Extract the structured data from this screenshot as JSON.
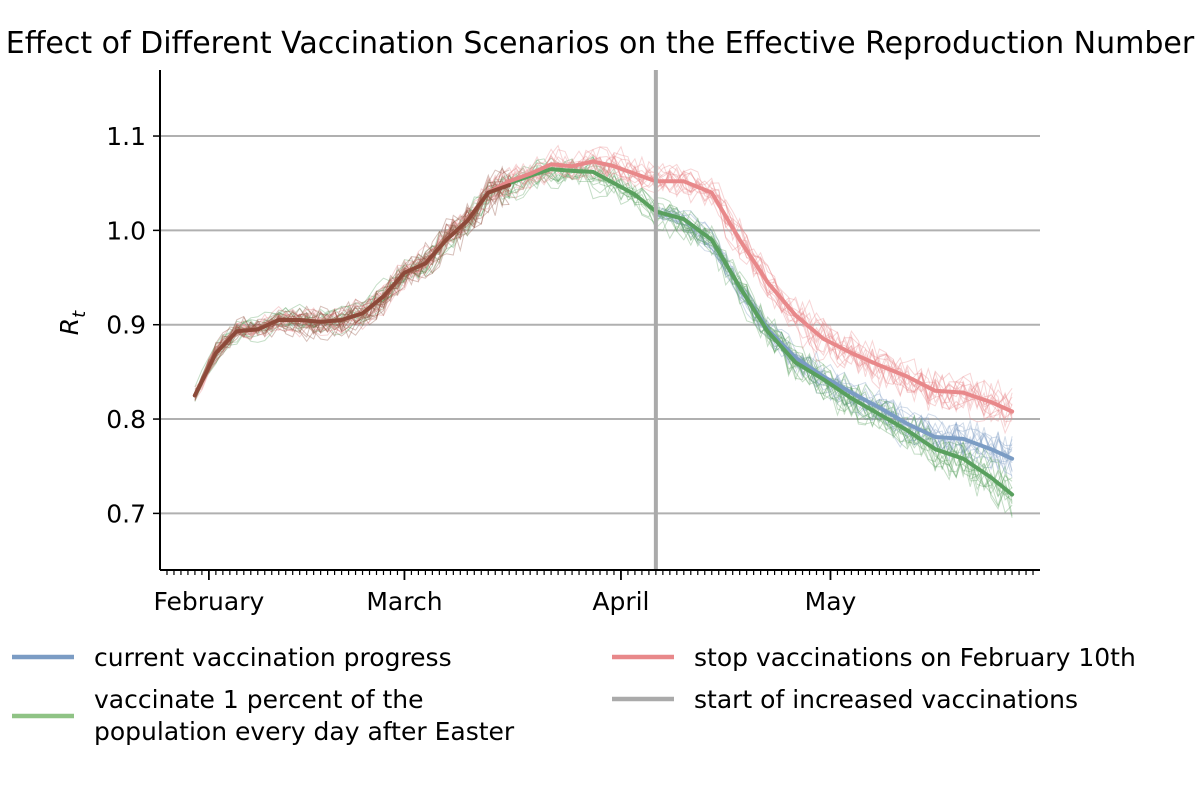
{
  "chart_data": {
    "type": "line",
    "title": "Effect of Different Vaccination Scenarios on the Effective Reproduction Number",
    "xlabel": "",
    "ylabel": "R",
    "ylabel_subscript": "t",
    "x_tick_labels": [
      "February",
      "March",
      "April",
      "May"
    ],
    "x_tick_dates": [
      "2021-02-01",
      "2021-03-01",
      "2021-04-01",
      "2021-05-01"
    ],
    "xlim": [
      "2021-01-25",
      "2021-05-31"
    ],
    "y_ticks": [
      0.7,
      0.8,
      0.9,
      1.0,
      1.1
    ],
    "ylim": [
      0.64,
      1.17
    ],
    "grid": "horizontal",
    "legend_position": "bottom",
    "vertical_marker": {
      "date": "2021-04-06",
      "label": "start of increased vaccinations",
      "color": "#aaaaaa"
    },
    "series": [
      {
        "name": "current vaccination progress",
        "color": "#7b9cc4",
        "points": [
          [
            "2021-04-06",
            1.02
          ],
          [
            "2021-04-10",
            1.012
          ],
          [
            "2021-04-14",
            0.99
          ],
          [
            "2021-04-18",
            0.94
          ],
          [
            "2021-04-22",
            0.895
          ],
          [
            "2021-04-26",
            0.865
          ],
          [
            "2021-04-30",
            0.845
          ],
          [
            "2021-05-04",
            0.828
          ],
          [
            "2021-05-08",
            0.812
          ],
          [
            "2021-05-12",
            0.795
          ],
          [
            "2021-05-16",
            0.781
          ],
          [
            "2021-05-20",
            0.779
          ],
          [
            "2021-05-24",
            0.768
          ],
          [
            "2021-05-27",
            0.758
          ]
        ]
      },
      {
        "name": "vaccinate 1 percent of the population every day after Easter",
        "color": "#59a05e",
        "points": [
          [
            "2021-01-30",
            0.825
          ],
          [
            "2021-02-02",
            0.87
          ],
          [
            "2021-02-05",
            0.893
          ],
          [
            "2021-02-08",
            0.895
          ],
          [
            "2021-02-11",
            0.905
          ],
          [
            "2021-02-14",
            0.905
          ],
          [
            "2021-02-17",
            0.903
          ],
          [
            "2021-02-20",
            0.905
          ],
          [
            "2021-02-23",
            0.912
          ],
          [
            "2021-02-26",
            0.93
          ],
          [
            "2021-03-01",
            0.955
          ],
          [
            "2021-03-04",
            0.965
          ],
          [
            "2021-03-07",
            0.99
          ],
          [
            "2021-03-10",
            1.01
          ],
          [
            "2021-03-13",
            1.04
          ],
          [
            "2021-03-16",
            1.05
          ],
          [
            "2021-03-19",
            1.058
          ],
          [
            "2021-03-22",
            1.065
          ],
          [
            "2021-03-25",
            1.063
          ],
          [
            "2021-03-28",
            1.062
          ],
          [
            "2021-03-31",
            1.05
          ],
          [
            "2021-04-03",
            1.038
          ],
          [
            "2021-04-06",
            1.02
          ],
          [
            "2021-04-10",
            1.012
          ],
          [
            "2021-04-14",
            0.99
          ],
          [
            "2021-04-18",
            0.94
          ],
          [
            "2021-04-22",
            0.893
          ],
          [
            "2021-04-26",
            0.86
          ],
          [
            "2021-04-30",
            0.842
          ],
          [
            "2021-05-04",
            0.822
          ],
          [
            "2021-05-08",
            0.805
          ],
          [
            "2021-05-12",
            0.788
          ],
          [
            "2021-05-16",
            0.768
          ],
          [
            "2021-05-20",
            0.758
          ],
          [
            "2021-05-24",
            0.738
          ],
          [
            "2021-05-27",
            0.72
          ]
        ]
      },
      {
        "name": "stop vaccinations on February 10th",
        "color": "#e8888a",
        "points": [
          [
            "2021-01-30",
            0.825
          ],
          [
            "2021-02-02",
            0.87
          ],
          [
            "2021-02-05",
            0.893
          ],
          [
            "2021-02-08",
            0.895
          ],
          [
            "2021-02-11",
            0.905
          ],
          [
            "2021-02-14",
            0.905
          ],
          [
            "2021-02-17",
            0.903
          ],
          [
            "2021-02-20",
            0.905
          ],
          [
            "2021-02-23",
            0.912
          ],
          [
            "2021-02-26",
            0.93
          ],
          [
            "2021-03-01",
            0.955
          ],
          [
            "2021-03-04",
            0.965
          ],
          [
            "2021-03-07",
            0.99
          ],
          [
            "2021-03-10",
            1.01
          ],
          [
            "2021-03-13",
            1.04
          ],
          [
            "2021-03-16",
            1.052
          ],
          [
            "2021-03-19",
            1.06
          ],
          [
            "2021-03-22",
            1.07
          ],
          [
            "2021-03-25",
            1.068
          ],
          [
            "2021-03-28",
            1.073
          ],
          [
            "2021-03-31",
            1.068
          ],
          [
            "2021-04-03",
            1.06
          ],
          [
            "2021-04-06",
            1.052
          ],
          [
            "2021-04-10",
            1.052
          ],
          [
            "2021-04-14",
            1.04
          ],
          [
            "2021-04-18",
            0.99
          ],
          [
            "2021-04-22",
            0.945
          ],
          [
            "2021-04-26",
            0.91
          ],
          [
            "2021-04-30",
            0.885
          ],
          [
            "2021-05-04",
            0.87
          ],
          [
            "2021-05-08",
            0.857
          ],
          [
            "2021-05-12",
            0.845
          ],
          [
            "2021-05-16",
            0.83
          ],
          [
            "2021-05-20",
            0.828
          ],
          [
            "2021-05-24",
            0.818
          ],
          [
            "2021-05-27",
            0.808
          ]
        ]
      },
      {
        "name": "",
        "color": "#8d4a3a",
        "points": [
          [
            "2021-01-30",
            0.825
          ],
          [
            "2021-02-02",
            0.87
          ],
          [
            "2021-02-05",
            0.893
          ],
          [
            "2021-02-08",
            0.895
          ],
          [
            "2021-02-11",
            0.905
          ],
          [
            "2021-02-14",
            0.905
          ],
          [
            "2021-02-17",
            0.903
          ],
          [
            "2021-02-20",
            0.905
          ],
          [
            "2021-02-23",
            0.912
          ],
          [
            "2021-02-26",
            0.93
          ],
          [
            "2021-03-01",
            0.955
          ],
          [
            "2021-03-04",
            0.965
          ],
          [
            "2021-03-07",
            0.99
          ],
          [
            "2021-03-10",
            1.01
          ],
          [
            "2021-03-13",
            1.04
          ],
          [
            "2021-03-16",
            1.048
          ]
        ]
      }
    ]
  },
  "legend": {
    "items": [
      {
        "label": "current vaccination progress",
        "color": "#7b9cc4"
      },
      {
        "label": "stop vaccinations on February 10th",
        "color": "#e8888a"
      },
      {
        "label_lines": [
          "vaccinate 1 percent of the",
          "population every day after Easter"
        ],
        "color": "#8fc385"
      },
      {
        "label": "start of increased vaccinations",
        "color": "#aaaaaa"
      }
    ]
  }
}
